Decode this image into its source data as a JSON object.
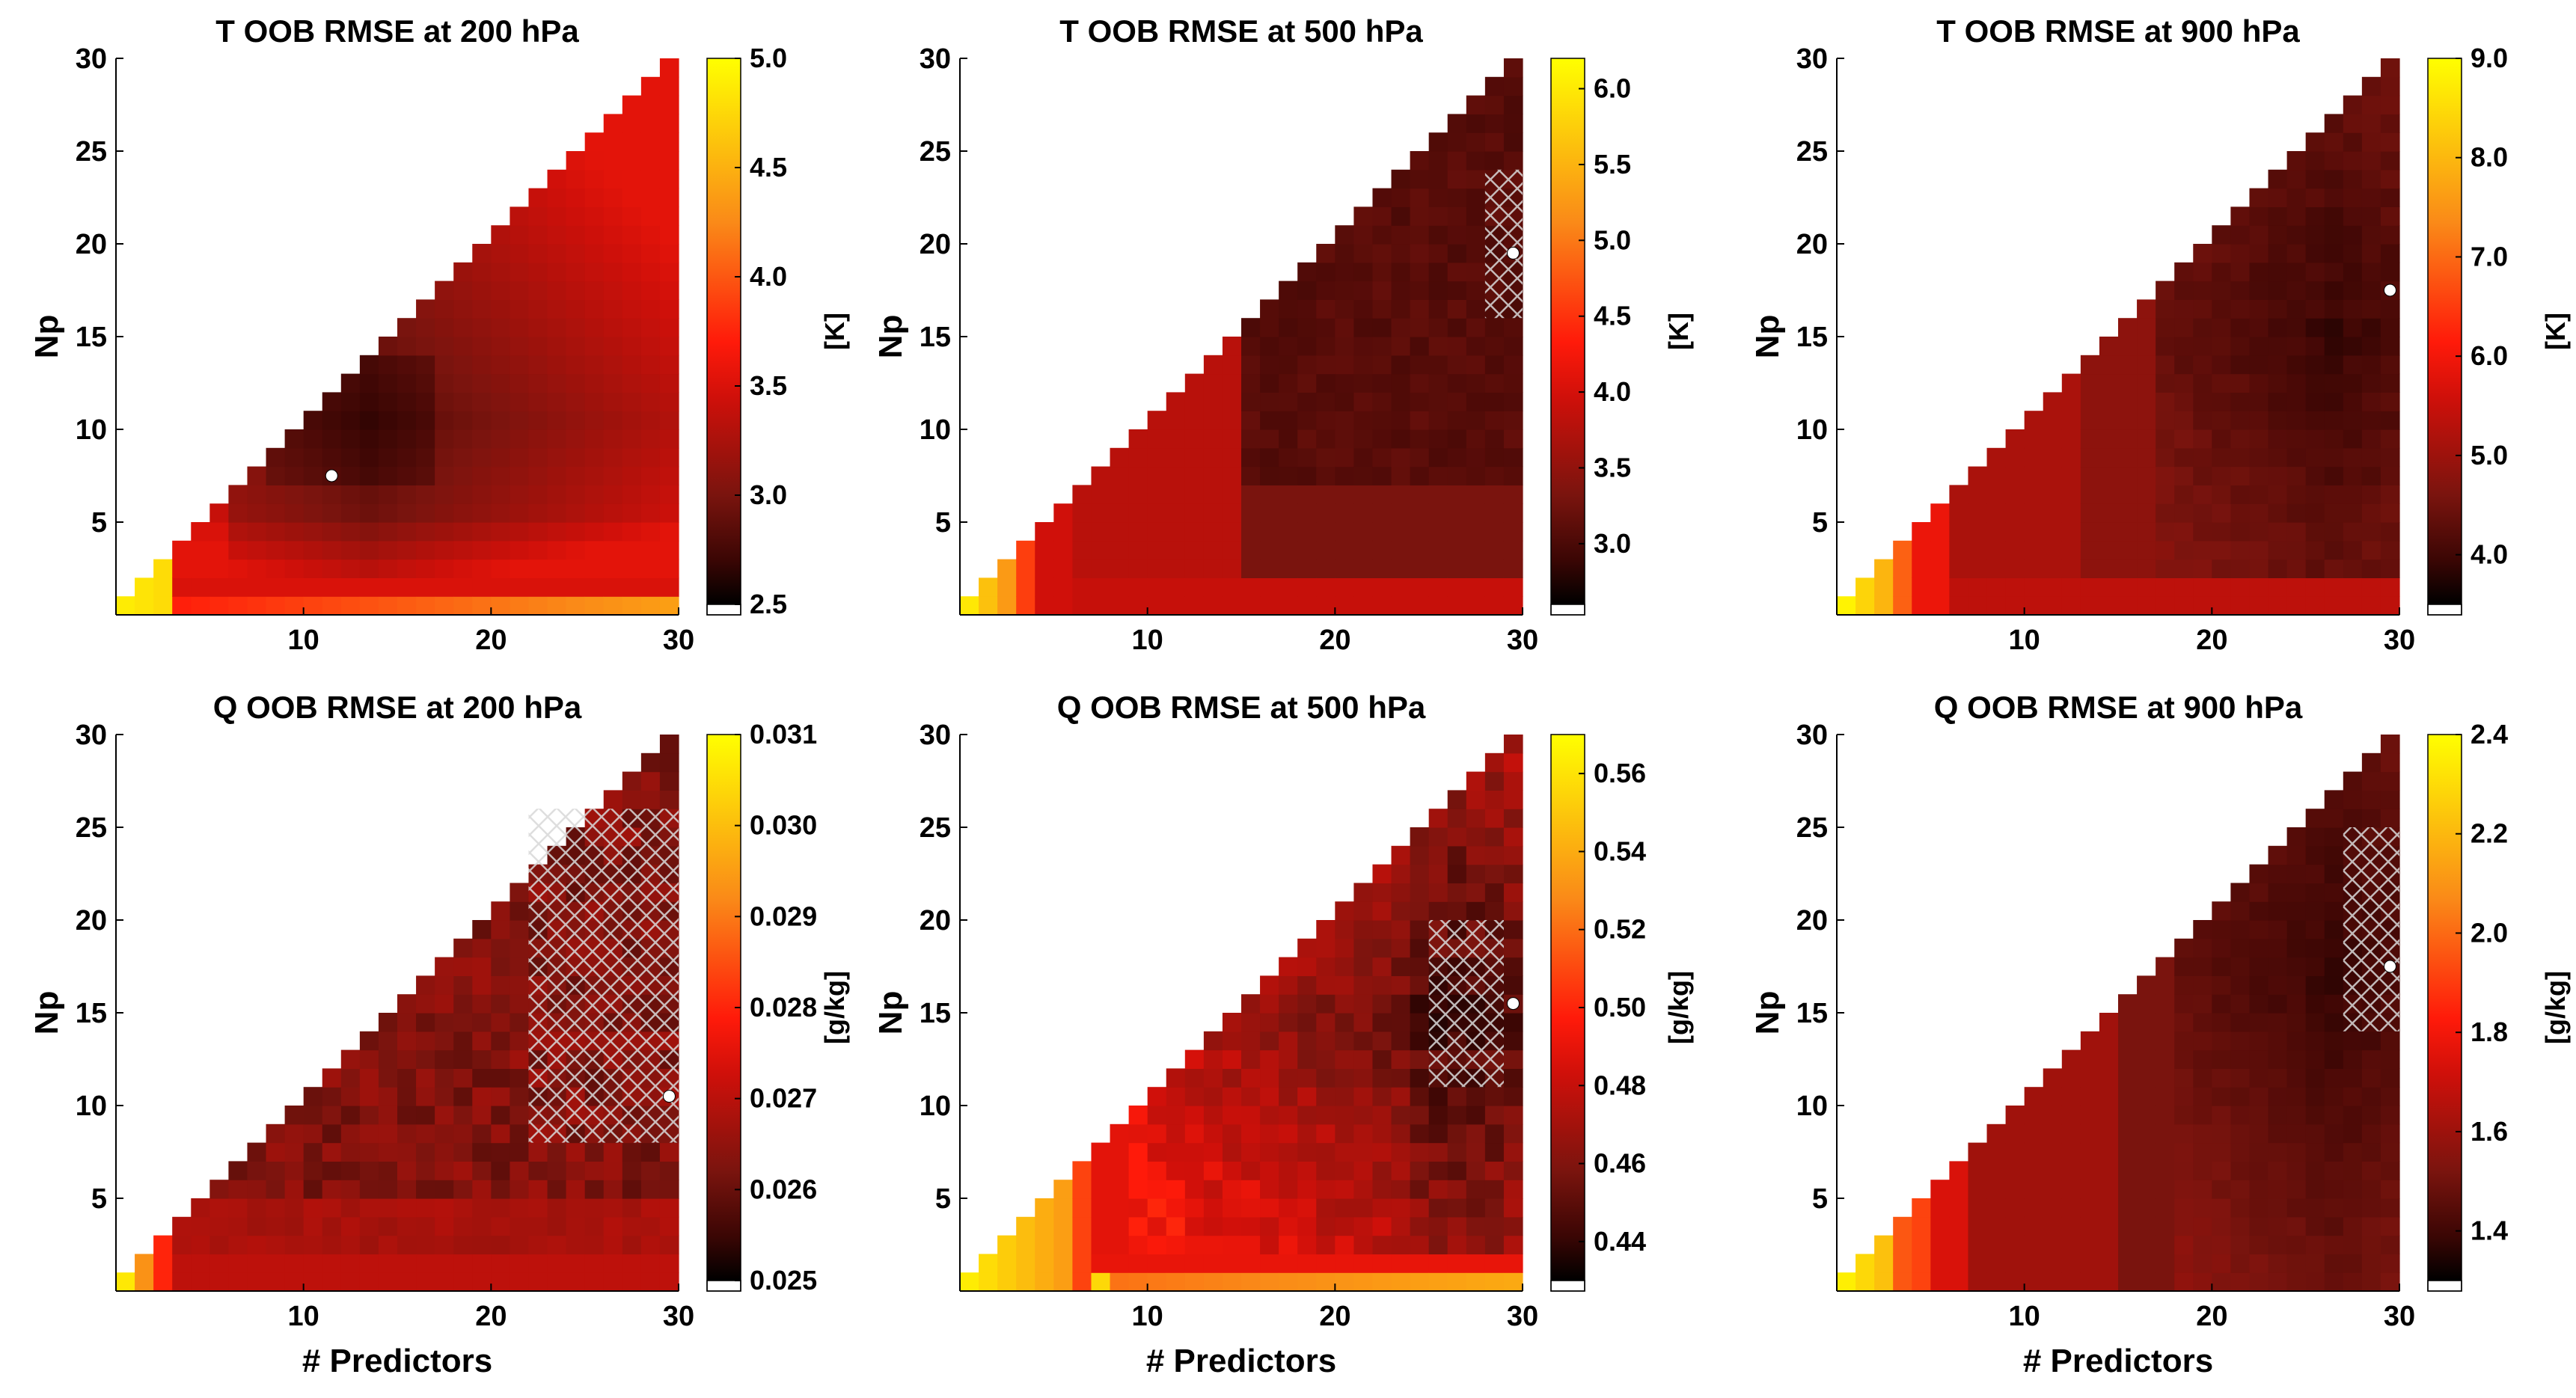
{
  "chart_data": [
    {
      "type": "heatmap",
      "variable": "T",
      "title": "T OOB RMSE at 200 hPa",
      "xlabel": "",
      "ylabel": "Np",
      "xlim": [
        0,
        30
      ],
      "ylim": [
        0,
        30
      ],
      "xticks": [
        "10",
        "20",
        "30"
      ],
      "yticks": [
        "5",
        "10",
        "15",
        "20",
        "25",
        "30"
      ],
      "colorbar": {
        "label": "[K]",
        "min": 2.5,
        "max": 5.0,
        "ticks": [
          "2.5",
          "3.0",
          "3.5",
          "4.0",
          "4.5",
          "5.0"
        ]
      },
      "minimum": {
        "predictors": 12,
        "np": 8
      },
      "hatch": null
    },
    {
      "type": "heatmap",
      "variable": "T",
      "title": "T OOB RMSE at 500 hPa",
      "xlabel": "",
      "ylabel": "Np",
      "xlim": [
        0,
        30
      ],
      "ylim": [
        0,
        30
      ],
      "xticks": [
        "10",
        "20",
        "30"
      ],
      "yticks": [
        "5",
        "10",
        "15",
        "20",
        "25",
        "30"
      ],
      "colorbar": {
        "label": "[K]",
        "min": 2.6,
        "max": 6.2,
        "ticks": [
          "3.0",
          "3.5",
          "4.0",
          "4.5",
          "5.0",
          "5.5",
          "6.0"
        ]
      },
      "minimum": {
        "predictors": 30,
        "np": 20
      },
      "hatch": {
        "predictors": [
          29,
          30
        ],
        "np": [
          17,
          24
        ]
      }
    },
    {
      "type": "heatmap",
      "variable": "T",
      "title": "T OOB RMSE at 900 hPa",
      "xlabel": "",
      "ylabel": "Np",
      "xlim": [
        0,
        30
      ],
      "ylim": [
        0,
        30
      ],
      "xticks": [
        "10",
        "20",
        "30"
      ],
      "yticks": [
        "5",
        "10",
        "15",
        "20",
        "25",
        "30"
      ],
      "colorbar": {
        "label": "[K]",
        "min": 3.5,
        "max": 9.0,
        "ticks": [
          "4.0",
          "5.0",
          "6.0",
          "7.0",
          "8.0",
          "9.0"
        ]
      },
      "minimum": {
        "predictors": 30,
        "np": 18
      },
      "hatch": null
    },
    {
      "type": "heatmap",
      "variable": "Q",
      "title": "Q OOB RMSE at 200 hPa",
      "xlabel": "# Predictors",
      "ylabel": "Np",
      "xlim": [
        0,
        30
      ],
      "ylim": [
        0,
        30
      ],
      "xticks": [
        "10",
        "20",
        "30"
      ],
      "yticks": [
        "5",
        "10",
        "15",
        "20",
        "25",
        "30"
      ],
      "colorbar": {
        "label": "[g/kg]",
        "min": 0.025,
        "max": 0.031,
        "ticks": [
          "0.025",
          "0.026",
          "0.027",
          "0.028",
          "0.029",
          "0.030",
          "0.031"
        ]
      },
      "minimum": {
        "predictors": 30,
        "np": 11
      },
      "hatch": {
        "predictors": [
          23,
          30
        ],
        "np": [
          9,
          26
        ]
      }
    },
    {
      "type": "heatmap",
      "variable": "Q",
      "title": "Q OOB RMSE at 500 hPa",
      "xlabel": "# Predictors",
      "ylabel": "Np",
      "xlim": [
        0,
        30
      ],
      "ylim": [
        0,
        30
      ],
      "xticks": [
        "10",
        "20",
        "30"
      ],
      "yticks": [
        "5",
        "10",
        "15",
        "20",
        "25",
        "30"
      ],
      "colorbar": {
        "label": "[g/kg]",
        "min": 0.43,
        "max": 0.57,
        "ticks": [
          "0.44",
          "0.46",
          "0.48",
          "0.50",
          "0.52",
          "0.54",
          "0.56"
        ]
      },
      "minimum": {
        "predictors": 30,
        "np": 16
      },
      "hatch": {
        "predictors": [
          26,
          29
        ],
        "np": [
          12,
          20
        ]
      }
    },
    {
      "type": "heatmap",
      "variable": "Q",
      "title": "Q OOB RMSE at 900 hPa",
      "xlabel": "# Predictors",
      "ylabel": "Np",
      "xlim": [
        0,
        30
      ],
      "ylim": [
        0,
        30
      ],
      "xticks": [
        "10",
        "20",
        "30"
      ],
      "yticks": [
        "5",
        "10",
        "15",
        "20",
        "25",
        "30"
      ],
      "colorbar": {
        "label": "[g/kg]",
        "min": 1.3,
        "max": 2.4,
        "ticks": [
          "1.4",
          "1.6",
          "1.8",
          "2.0",
          "2.2",
          "2.4"
        ]
      },
      "minimum": {
        "predictors": 30,
        "np": 18
      },
      "hatch": {
        "predictors": [
          28,
          30
        ],
        "np": [
          15,
          25
        ]
      }
    }
  ]
}
